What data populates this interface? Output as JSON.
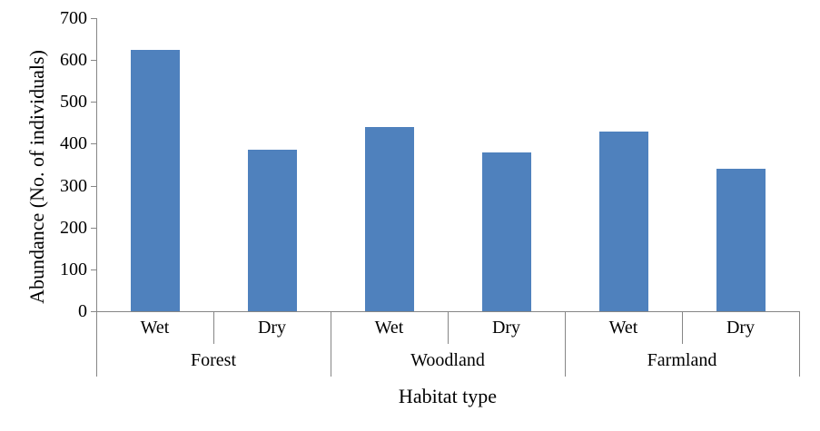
{
  "chart_data": {
    "type": "bar",
    "title": "",
    "xlabel": "Habitat type",
    "ylabel": "Abundance (No. of individuals)",
    "ylim": [
      0,
      700
    ],
    "ytick_interval": 100,
    "yticks": [
      0,
      100,
      200,
      300,
      400,
      500,
      600,
      700
    ],
    "groups": [
      "Forest",
      "Woodland",
      "Farmland"
    ],
    "subcategories": [
      "Wet",
      "Dry"
    ],
    "series": [
      {
        "group": "Forest",
        "label": "Wet",
        "value": 625
      },
      {
        "group": "Forest",
        "label": "Dry",
        "value": 385
      },
      {
        "group": "Woodland",
        "label": "Wet",
        "value": 440
      },
      {
        "group": "Woodland",
        "label": "Dry",
        "value": 380
      },
      {
        "group": "Farmland",
        "label": "Wet",
        "value": 430
      },
      {
        "group": "Farmland",
        "label": "Dry",
        "value": 340
      }
    ],
    "grid": false,
    "legend": "none",
    "colors": {
      "bar": "#4F81BD",
      "axis": "#868686",
      "text": "#000000",
      "background": "#FFFFFF"
    }
  }
}
